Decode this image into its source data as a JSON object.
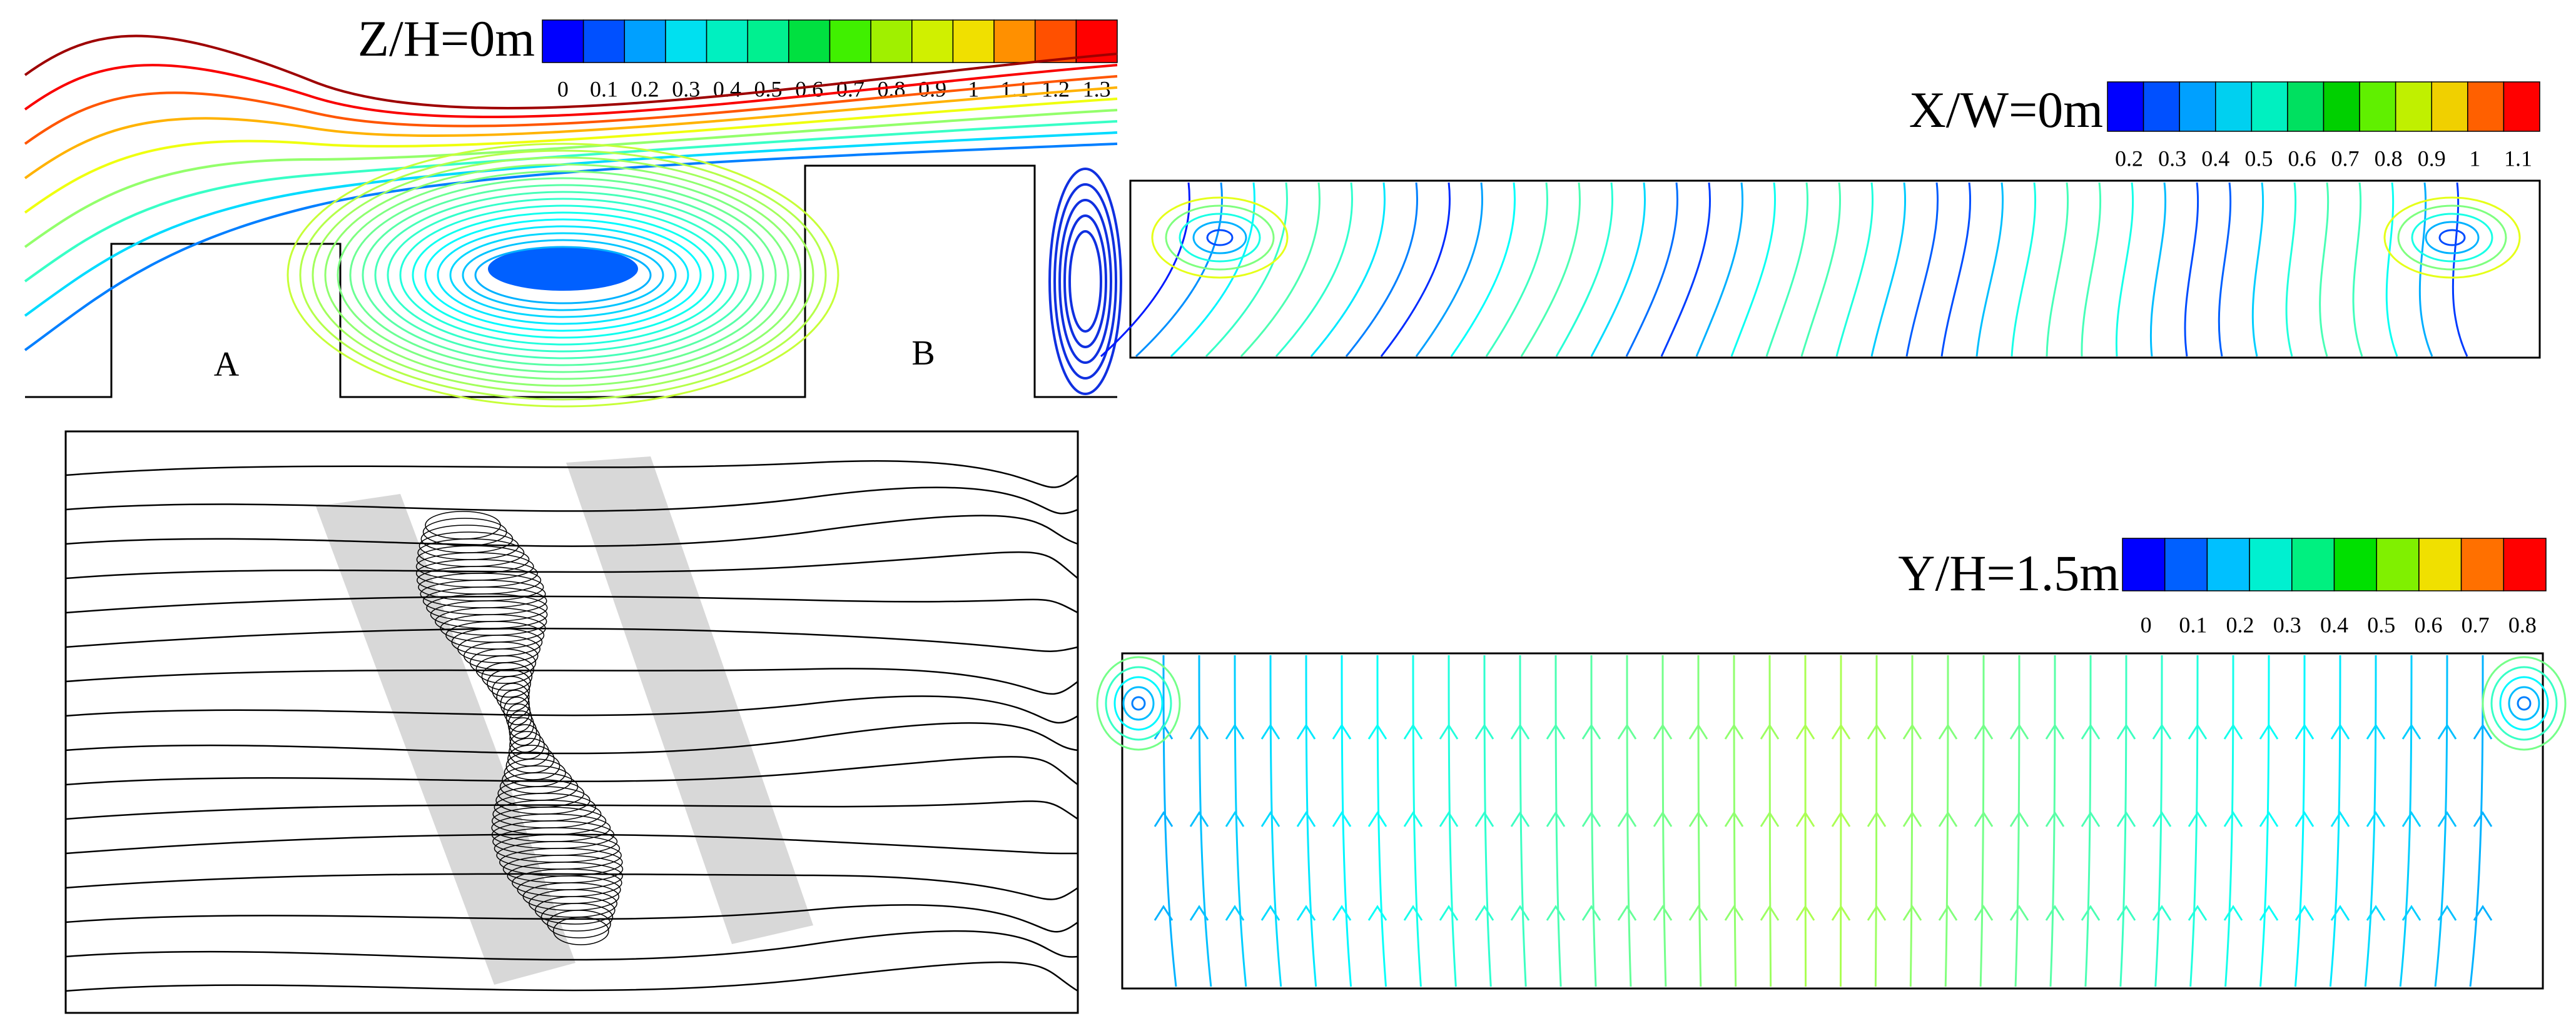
{
  "panels": [
    {
      "title": "Z/H=0m",
      "colorbar": {
        "colors": [
          "#0000ff",
          "#0050ff",
          "#00a0ff",
          "#00e0f0",
          "#00f0c0",
          "#00f090",
          "#00e040",
          "#40f000",
          "#a0f000",
          "#d0f000",
          "#f0e000",
          "#ff9000",
          "#ff5000",
          "#ff0000"
        ],
        "ticks": [
          0,
          0.1,
          0.2,
          0.3,
          0.4,
          0.5,
          0.6,
          0.7,
          0.8,
          0.9,
          1,
          1.1,
          1.2,
          1.3
        ]
      },
      "labels": [
        "A",
        "B"
      ]
    },
    {
      "title": "X/W=0m",
      "colorbar": {
        "colors": [
          "#0000ff",
          "#0050ff",
          "#00a0ff",
          "#00d0f0",
          "#00f0c0",
          "#00e060",
          "#00d000",
          "#60f000",
          "#c0f000",
          "#f0d000",
          "#ff6000",
          "#ff0000"
        ],
        "ticks": [
          0.2,
          0.3,
          0.4,
          0.5,
          0.6,
          0.7,
          0.8,
          0.9,
          1,
          1.1
        ]
      }
    },
    {
      "title": "Y/H=1.5m",
      "colorbar": {
        "colors": [
          "#0000ff",
          "#0060ff",
          "#00c0ff",
          "#00f0d0",
          "#00f080",
          "#00e000",
          "#80f000",
          "#f0e000",
          "#ff7000",
          "#ff0000"
        ],
        "ticks": [
          0,
          0.1,
          0.2,
          0.3,
          0.4,
          0.5,
          0.6,
          0.7,
          0.8
        ]
      }
    }
  ]
}
